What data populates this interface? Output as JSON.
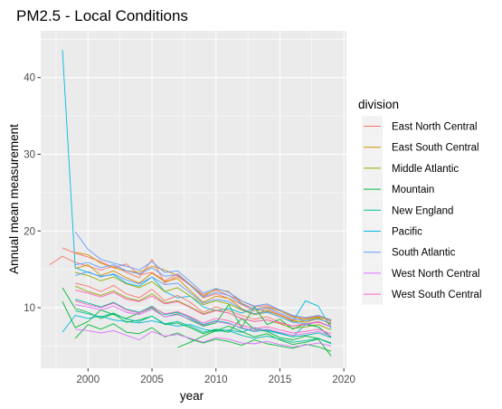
{
  "chart_data": {
    "type": "line",
    "title": "PM2.5 - Local Conditions",
    "xlabel": "year",
    "ylabel": "Annual mean measurement",
    "xlim": [
      1996.3,
      2020.2
    ],
    "ylim": [
      2.1,
      46.1
    ],
    "x_ticks": [
      2000,
      2005,
      2010,
      2015,
      2020
    ],
    "x_tick_labels": [
      "2000",
      "2005",
      "2010",
      "2015",
      "2020"
    ],
    "y_ticks": [
      10,
      20,
      30,
      40
    ],
    "y_tick_labels": [
      "10",
      "20",
      "30",
      "40"
    ],
    "grid": true,
    "panel_background": "#ebebeb",
    "legend": {
      "title": "division",
      "position": "right",
      "entries": [
        {
          "label": "East North Central",
          "color": "#F8766D"
        },
        {
          "label": "East South Central",
          "color": "#D39200"
        },
        {
          "label": "Middle Atlantic",
          "color": "#93AA00"
        },
        {
          "label": "Mountain",
          "color": "#00BA38"
        },
        {
          "label": "New England",
          "color": "#00C19F"
        },
        {
          "label": "Pacific",
          "color": "#00B9E3"
        },
        {
          "label": "South Atlantic",
          "color": "#619CFF"
        },
        {
          "label": "West North Central",
          "color": "#DB72FB"
        },
        {
          "label": "West South Central",
          "color": "#FF61C3"
        }
      ]
    },
    "series": [
      {
        "division": "Pacific",
        "x": [
          1998,
          1999,
          2000,
          2001,
          2002,
          2003,
          2004,
          2005,
          2006,
          2007,
          2008,
          2009,
          2010,
          2011,
          2012,
          2013,
          2014,
          2015,
          2016,
          2017,
          2018,
          2019
        ],
        "y": [
          43.6,
          15.2,
          14.6,
          14.1,
          14.3,
          13.2,
          12.8,
          14.0,
          12.1,
          11.3,
          11.5,
          10.1,
          9.6,
          9.9,
          9.3,
          9.9,
          9.5,
          9.1,
          8.2,
          10.9,
          10.2,
          7.3
        ]
      },
      {
        "division": "Pacific",
        "x": [
          1998,
          1999,
          2000,
          2001,
          2002,
          2003,
          2004,
          2005,
          2006,
          2007,
          2008,
          2009,
          2010,
          2011,
          2012,
          2013,
          2014,
          2015,
          2016,
          2017,
          2018,
          2019
        ],
        "y": [
          6.8,
          9.0,
          8.6,
          8.9,
          8.4,
          8.2,
          8.0,
          8.3,
          7.9,
          7.6,
          7.8,
          7.2,
          6.9,
          7.1,
          6.8,
          7.4,
          7.0,
          6.6,
          6.2,
          7.8,
          7.5,
          6.1
        ]
      },
      {
        "division": "East North Central",
        "x": [
          1997,
          1998,
          1999,
          2000,
          2001,
          2002,
          2003,
          2004,
          2005,
          2006,
          2007,
          2008,
          2009,
          2010,
          2011,
          2012,
          2013,
          2014,
          2015,
          2016,
          2017,
          2018,
          2019
        ],
        "y": [
          15.6,
          16.7,
          15.9,
          15.4,
          14.9,
          15.4,
          14.6,
          13.9,
          16.3,
          13.2,
          14.1,
          12.9,
          11.3,
          11.8,
          11.2,
          10.4,
          9.6,
          9.8,
          9.1,
          8.4,
          8.6,
          8.9,
          8.2
        ]
      },
      {
        "division": "East North Central",
        "x": [
          1998,
          1999,
          2000,
          2001,
          2002,
          2003,
          2004,
          2005,
          2006,
          2007,
          2008,
          2009,
          2010,
          2011,
          2012,
          2013,
          2014,
          2015,
          2016,
          2017,
          2018,
          2019
        ],
        "y": [
          17.8,
          17.1,
          16.6,
          16.0,
          15.2,
          15.7,
          14.3,
          14.6,
          13.5,
          14.4,
          13.0,
          11.7,
          12.3,
          11.6,
          10.9,
          10.1,
          10.3,
          9.6,
          8.9,
          8.7,
          8.9,
          8.4
        ]
      },
      {
        "division": "East North Central",
        "x": [
          1999,
          2000,
          2001,
          2002,
          2003,
          2004,
          2005,
          2006,
          2007,
          2008,
          2009,
          2010,
          2011,
          2012,
          2013,
          2014,
          2015,
          2016,
          2017,
          2018,
          2019
        ],
        "y": [
          13.2,
          12.8,
          12.1,
          12.9,
          11.8,
          11.3,
          12.4,
          10.9,
          11.6,
          10.7,
          9.4,
          10.1,
          9.6,
          9.0,
          8.5,
          8.8,
          8.1,
          7.6,
          7.9,
          8.2,
          7.5
        ]
      },
      {
        "division": "East South Central",
        "x": [
          1999,
          2000,
          2001,
          2002,
          2003,
          2004,
          2005,
          2006,
          2007,
          2008,
          2009,
          2010,
          2011,
          2012,
          2013,
          2014,
          2015,
          2016,
          2017,
          2018,
          2019
        ],
        "y": [
          17.2,
          16.9,
          15.8,
          15.2,
          14.8,
          14.6,
          15.4,
          14.9,
          14.2,
          13.0,
          11.5,
          12.4,
          12.1,
          10.6,
          9.8,
          10.1,
          9.6,
          8.8,
          8.5,
          8.8,
          8.3
        ]
      },
      {
        "division": "East South Central",
        "x": [
          1999,
          2000,
          2001,
          2002,
          2003,
          2004,
          2005,
          2006,
          2007,
          2008,
          2009,
          2010,
          2011,
          2012,
          2013,
          2014,
          2015,
          2016,
          2017,
          2018,
          2019
        ],
        "y": [
          15.1,
          15.6,
          14.2,
          14.8,
          13.9,
          13.2,
          14.5,
          13.4,
          13.8,
          12.2,
          10.7,
          11.5,
          11.2,
          9.9,
          9.2,
          9.6,
          9.0,
          8.3,
          8.1,
          8.6,
          7.9
        ]
      },
      {
        "division": "Middle Atlantic",
        "x": [
          1999,
          2000,
          2001,
          2002,
          2003,
          2004,
          2005,
          2006,
          2007,
          2008,
          2009,
          2010,
          2011,
          2012,
          2013,
          2014,
          2015,
          2016,
          2017,
          2018,
          2019
        ],
        "y": [
          12.8,
          12.1,
          11.6,
          12.2,
          11.3,
          10.9,
          11.8,
          10.6,
          10.9,
          10.1,
          9.2,
          9.7,
          9.3,
          8.6,
          8.2,
          8.4,
          7.9,
          7.3,
          7.5,
          7.8,
          7.1
        ]
      },
      {
        "division": "Middle Atlantic",
        "x": [
          1999,
          2000,
          2001,
          2002,
          2003,
          2004,
          2005,
          2006,
          2007,
          2008,
          2009,
          2010,
          2011,
          2012,
          2013,
          2014,
          2015,
          2016,
          2017,
          2018,
          2019
        ],
        "y": [
          14.6,
          14.2,
          13.5,
          14.0,
          13.1,
          12.6,
          13.4,
          12.1,
          12.6,
          11.5,
          10.4,
          10.9,
          10.5,
          9.7,
          9.1,
          9.4,
          8.8,
          8.1,
          8.3,
          8.7,
          7.8
        ]
      },
      {
        "division": "Mountain",
        "x": [
          1998,
          1999,
          2000,
          2001,
          2002,
          2003,
          2004,
          2005,
          2006,
          2007,
          2008,
          2009,
          2010,
          2011,
          2012,
          2013,
          2014,
          2015,
          2016,
          2017,
          2018,
          2019
        ],
        "y": [
          12.6,
          9.9,
          9.4,
          8.6,
          9.2,
          8.1,
          8.4,
          8.9,
          7.8,
          8.0,
          7.4,
          6.6,
          7.1,
          6.8,
          8.6,
          7.2,
          6.9,
          6.1,
          5.8,
          6.3,
          6.0,
          5.4
        ]
      },
      {
        "division": "Mountain",
        "x": [
          1999,
          2000,
          2001,
          2002,
          2003,
          2004,
          2005,
          2006,
          2007,
          2008,
          2009,
          2010,
          2011,
          2012,
          2013,
          2014,
          2015,
          2016,
          2017,
          2018,
          2019
        ],
        "y": [
          6.0,
          7.8,
          7.2,
          7.9,
          6.8,
          6.6,
          7.4,
          6.2,
          6.7,
          5.9,
          5.4,
          5.9,
          5.6,
          5.1,
          5.8,
          5.3,
          5.0,
          4.7,
          5.2,
          4.9,
          4.3
        ]
      },
      {
        "division": "Mountain",
        "x": [
          1998,
          1999,
          2000,
          2001,
          2002,
          2003,
          2004,
          2005,
          2006,
          2007,
          2008,
          2009,
          2010,
          2011,
          2012,
          2013,
          2014,
          2015,
          2016,
          2017,
          2018,
          2019
        ],
        "y": [
          10.8,
          7.4,
          8.2,
          9.7,
          9.1,
          8.6,
          9.3,
          10.0,
          8.8,
          9.2,
          8.4,
          7.6,
          8.0,
          10.4,
          7.4,
          10.1,
          7.8,
          8.5,
          7.2,
          7.9,
          7.5,
          6.2
        ]
      },
      {
        "division": "Mountain",
        "x": [
          2007,
          2008,
          2009,
          2010,
          2011,
          2012,
          2013,
          2014,
          2015,
          2016,
          2017,
          2018,
          2019
        ],
        "y": [
          4.8,
          5.5,
          6.3,
          7.0,
          7.6,
          6.9,
          6.2,
          6.6,
          5.8,
          5.2,
          5.5,
          5.9,
          3.7
        ]
      },
      {
        "division": "New England",
        "x": [
          1999,
          2000,
          2001,
          2002,
          2003,
          2004,
          2005,
          2006,
          2007,
          2008,
          2009,
          2010,
          2011,
          2012,
          2013,
          2014,
          2015,
          2016,
          2017,
          2018,
          2019
        ],
        "y": [
          11.1,
          10.6,
          10.1,
          10.7,
          9.8,
          9.4,
          10.2,
          9.1,
          9.4,
          8.7,
          7.8,
          8.3,
          8.0,
          7.3,
          6.9,
          7.1,
          6.7,
          6.2,
          6.4,
          6.7,
          6.1
        ]
      },
      {
        "division": "New England",
        "x": [
          1999,
          2000,
          2001,
          2002,
          2003,
          2004,
          2005,
          2006,
          2007,
          2008,
          2009,
          2010,
          2011,
          2012,
          2013,
          2014,
          2015,
          2016,
          2017,
          2018,
          2019
        ],
        "y": [
          9.6,
          9.2,
          8.8,
          9.3,
          8.5,
          8.2,
          8.9,
          7.9,
          8.2,
          7.6,
          6.8,
          7.2,
          7.0,
          6.4,
          6.0,
          6.3,
          5.9,
          5.5,
          5.7,
          6.0,
          5.3
        ]
      },
      {
        "division": "South Atlantic",
        "x": [
          1999,
          2000,
          2001,
          2002,
          2003,
          2004,
          2005,
          2006,
          2007,
          2008,
          2009,
          2010,
          2011,
          2012,
          2013,
          2014,
          2015,
          2016,
          2017,
          2018,
          2019
        ],
        "y": [
          15.6,
          15.9,
          15.2,
          15.6,
          14.8,
          14.4,
          15.2,
          14.1,
          14.3,
          12.9,
          11.4,
          12.0,
          11.6,
          10.5,
          9.8,
          10.0,
          9.3,
          8.6,
          8.3,
          8.5,
          8.0
        ]
      },
      {
        "division": "South Atlantic",
        "x": [
          1999,
          2000,
          2001,
          2002,
          2003,
          2004,
          2005,
          2006,
          2007,
          2008,
          2009,
          2010,
          2011,
          2012,
          2013,
          2014,
          2015,
          2016,
          2017,
          2018,
          2019
        ],
        "y": [
          14.2,
          14.7,
          14.0,
          14.4,
          13.6,
          13.1,
          14.0,
          13.0,
          13.2,
          11.9,
          10.6,
          11.1,
          10.8,
          9.8,
          9.2,
          9.4,
          8.8,
          8.1,
          7.9,
          8.1,
          7.6
        ]
      },
      {
        "division": "South Atlantic",
        "x": [
          1999,
          2000,
          2001,
          2002,
          2003,
          2004,
          2005,
          2006,
          2007,
          2008,
          2009,
          2010,
          2011,
          2012,
          2013,
          2014,
          2015,
          2016,
          2017,
          2018,
          2019
        ],
        "y": [
          19.9,
          17.6,
          16.3,
          15.8,
          15.4,
          14.9,
          16.0,
          14.6,
          14.8,
          13.4,
          11.9,
          12.5,
          12.0,
          10.9,
          10.2,
          10.5,
          9.7,
          9.0,
          8.7,
          9.0,
          8.4
        ]
      },
      {
        "division": "West North Central",
        "x": [
          1999,
          2000,
          2001,
          2002,
          2003,
          2004,
          2005,
          2006,
          2007,
          2008,
          2009,
          2010,
          2011,
          2012,
          2013,
          2014,
          2015,
          2016,
          2017,
          2018,
          2019
        ],
        "y": [
          10.4,
          10.1,
          9.7,
          10.2,
          9.4,
          9.1,
          9.8,
          8.8,
          9.1,
          8.5,
          7.7,
          8.2,
          7.9,
          7.4,
          7.0,
          7.2,
          6.8,
          6.4,
          6.6,
          6.9,
          6.3
        ]
      },
      {
        "division": "West North Central",
        "x": [
          1999,
          2000,
          2001,
          2002,
          2003,
          2004,
          2005,
          2006,
          2007,
          2008,
          2009,
          2010,
          2011,
          2012,
          2013,
          2014,
          2015,
          2016,
          2017,
          2018,
          2019
        ],
        "y": [
          7.2,
          7.0,
          6.7,
          7.0,
          6.4,
          5.8,
          6.9,
          6.3,
          6.5,
          6.0,
          5.5,
          6.1,
          5.9,
          5.4,
          5.3,
          5.6,
          5.2,
          4.9,
          5.1,
          5.4,
          5.0
        ]
      },
      {
        "division": "West South Central",
        "x": [
          1999,
          2000,
          2001,
          2002,
          2003,
          2004,
          2005,
          2006,
          2007,
          2008,
          2009,
          2010,
          2011,
          2012,
          2013,
          2014,
          2015,
          2016,
          2017,
          2018,
          2019
        ],
        "y": [
          12.3,
          11.9,
          11.4,
          12.0,
          11.1,
          10.8,
          11.5,
          10.5,
          10.8,
          10.0,
          9.1,
          9.6,
          9.3,
          8.6,
          8.2,
          8.4,
          8.0,
          7.6,
          7.8,
          8.1,
          7.5
        ]
      },
      {
        "division": "West South Central",
        "x": [
          1999,
          2000,
          2001,
          2002,
          2003,
          2004,
          2005,
          2006,
          2007,
          2008,
          2009,
          2010,
          2011,
          2012,
          2013,
          2014,
          2015,
          2016,
          2017,
          2018,
          2019
        ],
        "y": [
          10.9,
          10.4,
          10.0,
          10.6,
          9.7,
          9.3,
          10.1,
          9.2,
          9.5,
          8.8,
          8.0,
          8.6,
          8.3,
          7.7,
          7.3,
          7.5,
          7.1,
          6.7,
          6.9,
          7.2,
          6.6
        ]
      }
    ]
  }
}
